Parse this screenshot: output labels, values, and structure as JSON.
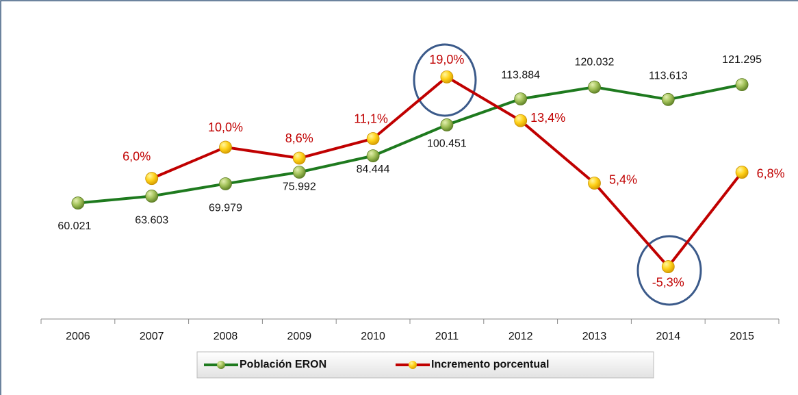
{
  "chart_data": {
    "type": "line",
    "categories": [
      "2006",
      "2007",
      "2008",
      "2009",
      "2010",
      "2011",
      "2012",
      "2013",
      "2014",
      "2015"
    ],
    "series": [
      {
        "name": "Población ERON",
        "color": "#1e7a1e",
        "values": [
          60021,
          63603,
          69979,
          75992,
          84444,
          100451,
          113884,
          120032,
          113613,
          121295
        ],
        "value_labels": [
          "60.021",
          "63.603",
          "69.979",
          "75.992",
          "84.444",
          "100.451",
          "113.884",
          "120.032",
          "113.613",
          "121.295"
        ]
      },
      {
        "name": "Incremento porcentual",
        "color": "#c00000",
        "axis": "y2",
        "values": [
          null,
          6.0,
          10.0,
          8.6,
          11.1,
          19.0,
          13.4,
          5.4,
          -5.3,
          6.8
        ],
        "value_labels": [
          null,
          "6,0%",
          "10,0%",
          "8,6%",
          "11,1%",
          "19,0%",
          "13,4%",
          "5,4%",
          "-5,3%",
          "6,8%"
        ]
      }
    ],
    "ylim": [
      0,
      158000
    ],
    "y2lim": [
      -12,
      27.1
    ],
    "legend": "bottom"
  }
}
